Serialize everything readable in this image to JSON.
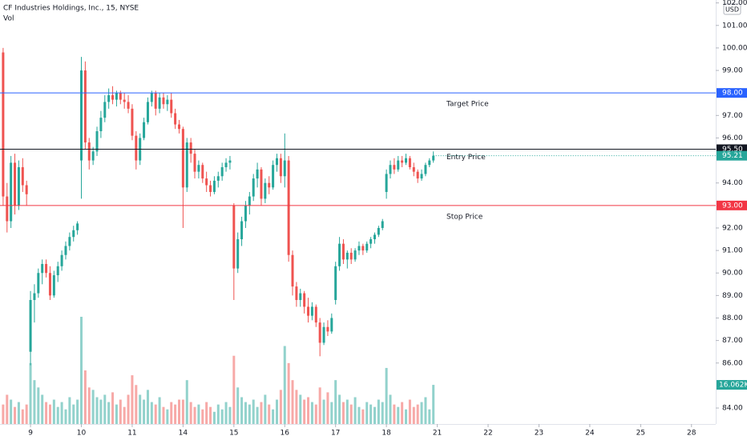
{
  "chart_data": {
    "type": "candlestick",
    "title": "CF Industries Holdings, Inc., 15, NYSE",
    "volume_title": "Vol",
    "currency": "USD",
    "up_color": "#26a69a",
    "down_color": "#ef5350",
    "ylim": [
      83.29,
      102.13
    ],
    "yticks": [
      {
        "value": 84,
        "label": "84.00"
      },
      {
        "value": 86,
        "label": "86.00"
      },
      {
        "value": 87,
        "label": "87.00"
      },
      {
        "value": 88,
        "label": "88.00"
      },
      {
        "value": 89,
        "label": "89.00"
      },
      {
        "value": 90,
        "label": "90.00"
      },
      {
        "value": 91,
        "label": "91.00"
      },
      {
        "value": 92,
        "label": "92.00"
      },
      {
        "value": 94,
        "label": "94.00"
      },
      {
        "value": 96,
        "label": "96.00"
      },
      {
        "value": 97,
        "label": "97.00"
      },
      {
        "value": 99,
        "label": "99.00"
      },
      {
        "value": 100,
        "label": "100.00"
      },
      {
        "value": 101,
        "label": "101.00"
      },
      {
        "value": 102,
        "label": "102.00"
      }
    ],
    "xlim": [
      -7.8,
      175.2
    ],
    "xticks": [
      {
        "value": 0,
        "label": "9"
      },
      {
        "value": 13,
        "label": "10"
      },
      {
        "value": 26,
        "label": "11"
      },
      {
        "value": 39,
        "label": "14"
      },
      {
        "value": 52,
        "label": "15"
      },
      {
        "value": 65,
        "label": "16"
      },
      {
        "value": 78,
        "label": "17"
      },
      {
        "value": 91,
        "label": "18"
      },
      {
        "value": 104,
        "label": "21"
      },
      {
        "value": 117,
        "label": "22"
      },
      {
        "value": 130,
        "label": "23"
      },
      {
        "value": 143,
        "label": "24"
      },
      {
        "value": 156,
        "label": "25"
      },
      {
        "value": 169,
        "label": "28"
      }
    ],
    "x": [
      -7,
      -6,
      -5,
      -4,
      -3,
      -2,
      -1,
      0,
      1,
      2,
      3,
      4,
      5,
      6,
      7,
      8,
      9,
      10,
      11,
      12,
      13,
      14,
      15,
      16,
      17,
      18,
      19,
      20,
      21,
      22,
      23,
      24,
      25,
      26,
      27,
      28,
      29,
      30,
      31,
      32,
      33,
      34,
      35,
      36,
      37,
      38,
      39,
      40,
      41,
      42,
      43,
      44,
      45,
      46,
      47,
      48,
      49,
      50,
      51,
      52,
      53,
      54,
      55,
      56,
      57,
      58,
      59,
      60,
      61,
      62,
      63,
      64,
      65,
      66,
      67,
      68,
      69,
      70,
      71,
      72,
      73,
      74,
      75,
      76,
      77,
      78,
      79,
      80,
      81,
      82,
      83,
      84,
      85,
      86,
      87,
      88,
      89,
      90,
      91,
      92,
      93,
      94,
      95,
      96,
      97,
      98,
      99,
      100,
      101,
      102,
      103
    ],
    "ohlc": [
      [
        99.8,
        100.0,
        93.0,
        93.4
      ],
      [
        93.4,
        94.0,
        91.8,
        92.3
      ],
      [
        92.3,
        95.2,
        92.0,
        94.9
      ],
      [
        94.9,
        95.3,
        92.6,
        93.0
      ],
      [
        93.0,
        95.0,
        92.8,
        94.7
      ],
      [
        94.7,
        95.1,
        93.6,
        93.9
      ],
      [
        93.9,
        94.1,
        93.0,
        93.5
      ],
      [
        86.5,
        89.2,
        85.9,
        88.8
      ],
      [
        88.8,
        89.5,
        87.8,
        89.1
      ],
      [
        89.1,
        90.2,
        88.9,
        90.0
      ],
      [
        90.0,
        90.6,
        89.5,
        90.4
      ],
      [
        90.4,
        90.6,
        89.8,
        90.0
      ],
      [
        90.0,
        90.3,
        88.8,
        89.0
      ],
      [
        89.0,
        90.1,
        88.9,
        89.9
      ],
      [
        89.9,
        90.5,
        89.6,
        90.3
      ],
      [
        90.3,
        91.0,
        90.1,
        90.8
      ],
      [
        90.8,
        91.4,
        90.6,
        91.2
      ],
      [
        91.2,
        91.8,
        91.0,
        91.6
      ],
      [
        91.6,
        92.1,
        91.4,
        91.9
      ],
      [
        91.9,
        92.3,
        91.7,
        92.2
      ],
      [
        95.0,
        99.6,
        93.3,
        99.0
      ],
      [
        99.0,
        99.4,
        95.5,
        95.8
      ],
      [
        95.8,
        96.0,
        94.6,
        95.0
      ],
      [
        95.0,
        95.6,
        94.8,
        95.4
      ],
      [
        95.4,
        96.5,
        95.2,
        96.3
      ],
      [
        96.3,
        97.2,
        96.0,
        96.9
      ],
      [
        96.9,
        97.9,
        96.7,
        97.6
      ],
      [
        97.6,
        98.2,
        97.3,
        97.9
      ],
      [
        97.9,
        98.3,
        97.5,
        97.7
      ],
      [
        97.7,
        98.1,
        97.4,
        98.0
      ],
      [
        98.0,
        98.1,
        97.5,
        97.7
      ],
      [
        97.7,
        98.0,
        97.3,
        97.6
      ],
      [
        97.6,
        97.9,
        97.1,
        97.3
      ],
      [
        97.3,
        97.5,
        95.9,
        96.1
      ],
      [
        96.1,
        96.3,
        94.6,
        95.0
      ],
      [
        95.0,
        96.2,
        94.8,
        96.0
      ],
      [
        96.0,
        96.9,
        95.9,
        96.7
      ],
      [
        96.7,
        97.8,
        96.6,
        97.6
      ],
      [
        97.6,
        98.1,
        97.4,
        98.0
      ],
      [
        98.0,
        98.1,
        97.0,
        97.3
      ],
      [
        97.3,
        98.0,
        97.1,
        97.8
      ],
      [
        97.8,
        98.0,
        97.3,
        97.5
      ],
      [
        97.5,
        97.9,
        97.2,
        97.7
      ],
      [
        97.7,
        98.0,
        96.9,
        97.1
      ],
      [
        97.1,
        97.3,
        96.4,
        96.6
      ],
      [
        96.6,
        96.8,
        96.2,
        96.4
      ],
      [
        96.4,
        96.5,
        92.0,
        93.8
      ],
      [
        93.8,
        96.0,
        93.6,
        95.8
      ],
      [
        95.8,
        96.0,
        94.9,
        95.3
      ],
      [
        95.3,
        95.5,
        94.2,
        94.5
      ],
      [
        94.5,
        95.0,
        94.2,
        94.8
      ],
      [
        94.8,
        94.9,
        94.0,
        94.2
      ],
      [
        94.2,
        94.5,
        93.6,
        93.9
      ],
      [
        93.9,
        94.1,
        93.4,
        93.6
      ],
      [
        93.6,
        94.3,
        93.5,
        94.1
      ],
      [
        94.1,
        94.5,
        93.8,
        94.3
      ],
      [
        94.3,
        94.9,
        94.1,
        94.7
      ],
      [
        94.7,
        95.1,
        94.5,
        94.9
      ],
      [
        94.9,
        95.2,
        94.6,
        95.0
      ],
      [
        93.0,
        93.1,
        88.8,
        90.2
      ],
      [
        90.2,
        91.8,
        90.0,
        91.5
      ],
      [
        91.5,
        92.5,
        91.2,
        92.3
      ],
      [
        92.3,
        93.2,
        92.0,
        93.0
      ],
      [
        93.0,
        93.6,
        92.6,
        93.4
      ],
      [
        93.4,
        94.4,
        93.2,
        94.2
      ],
      [
        94.2,
        94.9,
        93.8,
        94.6
      ],
      [
        94.6,
        94.7,
        93.0,
        93.3
      ],
      [
        93.3,
        94.2,
        93.1,
        94.0
      ],
      [
        94.0,
        94.3,
        93.5,
        93.8
      ],
      [
        93.8,
        95.0,
        93.7,
        94.8
      ],
      [
        94.8,
        95.3,
        94.5,
        95.1
      ],
      [
        95.1,
        95.3,
        94.0,
        94.3
      ],
      [
        94.3,
        96.2,
        93.8,
        95.0
      ],
      [
        95.0,
        95.2,
        90.5,
        90.8
      ],
      [
        90.8,
        91.0,
        89.0,
        89.4
      ],
      [
        89.4,
        89.6,
        88.5,
        88.8
      ],
      [
        88.8,
        89.3,
        88.5,
        89.1
      ],
      [
        89.1,
        89.2,
        88.2,
        88.5
      ],
      [
        88.5,
        88.9,
        87.8,
        88.1
      ],
      [
        88.1,
        88.7,
        87.9,
        88.5
      ],
      [
        88.5,
        88.6,
        87.6,
        87.8
      ],
      [
        87.8,
        88.0,
        86.3,
        86.9
      ],
      [
        86.9,
        87.8,
        86.8,
        87.6
      ],
      [
        87.6,
        87.9,
        87.2,
        87.4
      ],
      [
        87.4,
        88.2,
        87.3,
        88.0
      ],
      [
        88.8,
        90.5,
        88.6,
        90.3
      ],
      [
        90.3,
        91.6,
        90.1,
        91.3
      ],
      [
        91.3,
        91.5,
        90.4,
        90.6
      ],
      [
        90.6,
        91.0,
        90.2,
        90.9
      ],
      [
        90.9,
        91.1,
        90.4,
        90.6
      ],
      [
        90.6,
        91.1,
        90.5,
        91.0
      ],
      [
        91.0,
        91.4,
        90.8,
        91.2
      ],
      [
        91.2,
        91.3,
        90.8,
        91.0
      ],
      [
        91.0,
        91.4,
        90.9,
        91.3
      ],
      [
        91.3,
        91.6,
        91.1,
        91.5
      ],
      [
        91.5,
        91.8,
        91.3,
        91.7
      ],
      [
        91.7,
        92.1,
        91.6,
        92.0
      ],
      [
        92.0,
        92.4,
        91.9,
        92.3
      ],
      [
        93.6,
        94.6,
        93.3,
        94.4
      ],
      [
        94.4,
        95.0,
        94.2,
        94.8
      ],
      [
        94.8,
        95.1,
        94.4,
        94.6
      ],
      [
        94.6,
        95.2,
        94.5,
        95.0
      ],
      [
        95.0,
        95.2,
        94.7,
        94.9
      ],
      [
        94.9,
        95.3,
        94.8,
        95.1
      ],
      [
        95.1,
        95.2,
        94.6,
        94.7
      ],
      [
        94.7,
        94.9,
        94.3,
        94.5
      ],
      [
        94.5,
        94.6,
        94.0,
        94.2
      ],
      [
        94.2,
        94.6,
        94.1,
        94.4
      ],
      [
        94.4,
        94.9,
        94.3,
        94.8
      ],
      [
        94.8,
        95.1,
        94.7,
        95.0
      ],
      [
        95.0,
        95.4,
        94.9,
        95.21
      ]
    ],
    "volume": [
      8,
      12,
      10,
      7,
      9,
      6,
      8,
      25,
      18,
      15,
      12,
      9,
      8,
      10,
      7,
      9,
      6,
      11,
      8,
      10,
      44,
      22,
      15,
      14,
      11,
      10,
      12,
      9,
      13,
      8,
      10,
      7,
      12,
      20,
      16,
      12,
      10,
      14,
      9,
      8,
      11,
      7,
      6,
      9,
      8,
      10,
      10,
      18,
      9,
      7,
      8,
      6,
      9,
      7,
      5,
      8,
      6,
      9,
      7,
      28,
      15,
      11,
      9,
      8,
      10,
      7,
      9,
      12,
      8,
      6,
      10,
      14,
      32,
      25,
      18,
      14,
      12,
      10,
      11,
      9,
      8,
      15,
      10,
      13,
      9,
      18,
      12,
      9,
      10,
      8,
      11,
      7,
      6,
      9,
      8,
      7,
      10,
      9,
      23,
      12,
      8,
      7,
      9,
      6,
      10,
      7,
      8,
      9,
      11,
      6,
      16.062
    ],
    "volume_last_label": "16.062K",
    "volume_ylim": [
      0,
      174
    ],
    "levels": [
      {
        "value": 98,
        "label": "98.00",
        "name": "Target Price",
        "color": "#2962ff"
      },
      {
        "value": 95.5,
        "label": "95.50",
        "name": "Entry Price",
        "color": "#131722"
      },
      {
        "value": 93,
        "label": "93.00",
        "name": "Stop Price",
        "color": "#f23645"
      }
    ]
  }
}
